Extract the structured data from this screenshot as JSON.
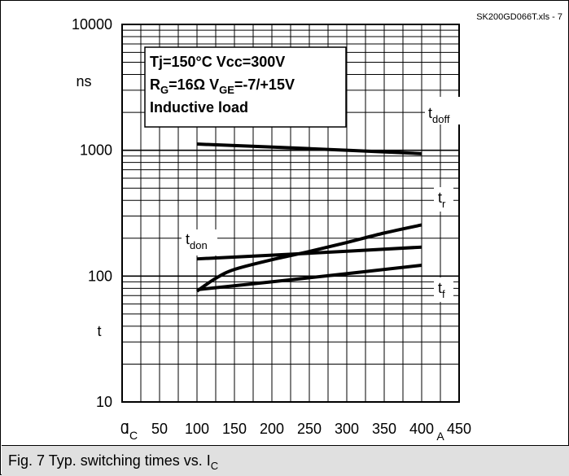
{
  "source_label": "SK200GD066T.xls - 7",
  "caption": {
    "text": "Fig. 7 Typ. switching times vs. I",
    "sub": "C"
  },
  "conditions": [
    {
      "segments": [
        {
          "t": "Tj=150°C   Vcc=300V"
        }
      ]
    },
    {
      "segments": [
        {
          "t": "R"
        },
        {
          "t": "G",
          "sub": true
        },
        {
          "t": "=16Ω   V"
        },
        {
          "t": "GE",
          "sub": true
        },
        {
          "t": "=-7/+15V"
        }
      ]
    },
    {
      "segments": [
        {
          "t": "Inductive load"
        }
      ]
    }
  ],
  "chart_data": {
    "type": "line",
    "title": "",
    "xlabel": "I_C",
    "xunit": "A",
    "ylabel": "t",
    "yunit": "ns",
    "xlim": [
      0,
      450
    ],
    "ylim": [
      10,
      10000
    ],
    "yscale": "log",
    "grid": true,
    "x_tick_labels": [
      "0",
      "50",
      "100",
      "150",
      "200",
      "250",
      "300",
      "350",
      "400",
      "450"
    ],
    "y_tick_labels": [
      "10",
      "100",
      "1000",
      "10000"
    ],
    "series": [
      {
        "name": "t_doff",
        "main": "t",
        "sub": "doff",
        "points": [
          [
            100,
            1120
          ],
          [
            250,
            1030
          ],
          [
            400,
            940
          ]
        ]
      },
      {
        "name": "t_r",
        "main": "t",
        "sub": "r",
        "points": [
          [
            100,
            76
          ],
          [
            125,
            96
          ],
          [
            150,
            113
          ],
          [
            200,
            135
          ],
          [
            250,
            157
          ],
          [
            300,
            185
          ],
          [
            350,
            220
          ],
          [
            400,
            255
          ]
        ]
      },
      {
        "name": "t_don",
        "main": "t",
        "sub": "don",
        "points": [
          [
            100,
            137
          ],
          [
            250,
            152
          ],
          [
            400,
            170
          ]
        ]
      },
      {
        "name": "t_f",
        "main": "t",
        "sub": "f",
        "points": [
          [
            100,
            78
          ],
          [
            250,
            97
          ],
          [
            400,
            122
          ]
        ]
      }
    ]
  }
}
